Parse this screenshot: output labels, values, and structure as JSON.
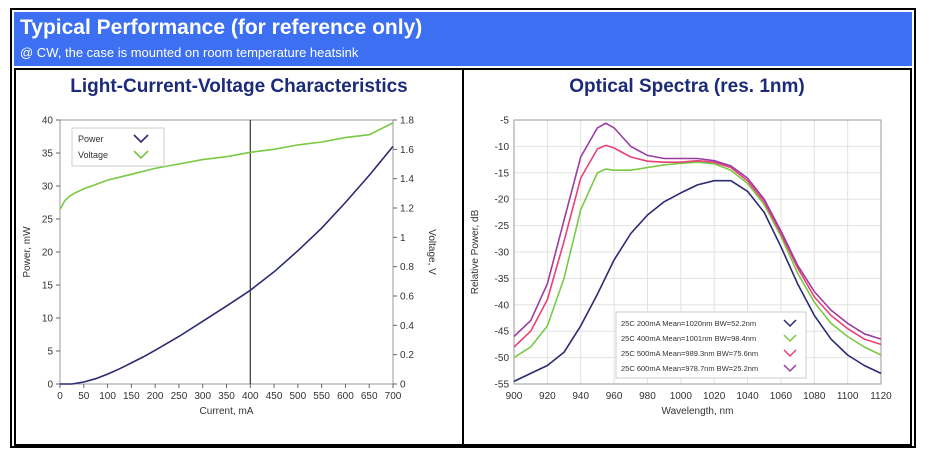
{
  "header": {
    "title": "Typical Performance (for reference only)",
    "subtitle": "@ CW, the case is mounted on room temperature heatsink"
  },
  "colors": {
    "header_bg": "#3d6ff2",
    "panel_title": "#1c2a7a",
    "power": "#2b2a72",
    "voltage": "#7ac943",
    "s200": "#2b2a72",
    "s400": "#7ac943",
    "s500": "#e8417a",
    "s600": "#9b3da5"
  },
  "chart_data": [
    {
      "type": "line",
      "title": "Light-Current-Voltage Characteristics",
      "xlabel": "Current, mA",
      "ylabel": "Power, mW",
      "y2label": "Voltage, V",
      "xlim": [
        0,
        700
      ],
      "ylim": [
        0,
        40
      ],
      "y2lim": [
        0,
        1.8
      ],
      "xticks": [
        "0",
        "50",
        "100",
        "150",
        "200",
        "250",
        "300",
        "350",
        "400",
        "450",
        "500",
        "550",
        "600",
        "650",
        "700"
      ],
      "yticks": [
        "0",
        "5",
        "10",
        "15",
        "20",
        "25",
        "30",
        "35",
        "40"
      ],
      "y2ticks": [
        "0",
        "0.2",
        "0.4",
        "0.6",
        "0.8",
        "1",
        "1.2",
        "1.4",
        "1.6",
        "1.8"
      ],
      "marker_x": 400,
      "legend_position": "top-left",
      "series": [
        {
          "name": "Power",
          "axis": "left",
          "color": "#2b2a72",
          "x": [
            0,
            25,
            50,
            75,
            100,
            125,
            150,
            175,
            200,
            250,
            300,
            350,
            400,
            450,
            500,
            550,
            600,
            650,
            700
          ],
          "y": [
            0,
            0,
            0.3,
            0.8,
            1.5,
            2.3,
            3.2,
            4.1,
            5.1,
            7.2,
            9.5,
            11.8,
            14.2,
            17.0,
            20.2,
            23.6,
            27.5,
            31.6,
            36.0
          ]
        },
        {
          "name": "Voltage",
          "axis": "right",
          "color": "#7ac943",
          "x": [
            0,
            10,
            20,
            30,
            50,
            75,
            100,
            150,
            200,
            250,
            300,
            350,
            400,
            450,
            500,
            550,
            600,
            650,
            700
          ],
          "y": [
            1.19,
            1.25,
            1.28,
            1.3,
            1.33,
            1.36,
            1.39,
            1.43,
            1.47,
            1.5,
            1.53,
            1.55,
            1.58,
            1.6,
            1.63,
            1.65,
            1.68,
            1.7,
            1.78
          ]
        }
      ]
    },
    {
      "type": "line",
      "title": "Optical Spectra (res. 1nm)",
      "xlabel": "Wavelength, nm",
      "ylabel": "Relative Power, dB",
      "xlim": [
        900,
        1120
      ],
      "ylim": [
        -55,
        -5
      ],
      "xticks": [
        "900",
        "920",
        "940",
        "960",
        "980",
        "1000",
        "1020",
        "1040",
        "1060",
        "1080",
        "1100",
        "1120"
      ],
      "yticks": [
        "-5",
        "-10",
        "-15",
        "-20",
        "-25",
        "-30",
        "-35",
        "-40",
        "-45",
        "-50",
        "-55"
      ],
      "legend_position": "bottom-center",
      "series": [
        {
          "name": "25C 200mA Mean=1020nm BW=52.2nm",
          "color": "#2b2a72",
          "x": [
            900,
            910,
            920,
            930,
            940,
            950,
            960,
            970,
            980,
            990,
            1000,
            1010,
            1020,
            1030,
            1040,
            1050,
            1060,
            1070,
            1080,
            1090,
            1100,
            1110,
            1120
          ],
          "y": [
            -54.5,
            -53,
            -51.5,
            -49,
            -44,
            -38,
            -31.5,
            -26.5,
            -23,
            -20.5,
            -18.8,
            -17.3,
            -16.5,
            -16.5,
            -18.5,
            -22.5,
            -29,
            -36,
            -42,
            -46.5,
            -49.5,
            -51.5,
            -53
          ]
        },
        {
          "name": "25C 400mA Mean=1001nm BW=98.4nm",
          "color": "#7ac943",
          "x": [
            900,
            910,
            920,
            930,
            940,
            950,
            955,
            960,
            970,
            980,
            990,
            1000,
            1010,
            1020,
            1030,
            1040,
            1050,
            1060,
            1070,
            1080,
            1090,
            1100,
            1110,
            1120
          ],
          "y": [
            -50,
            -48,
            -44,
            -35,
            -22,
            -15,
            -14.3,
            -14.5,
            -14.5,
            -14,
            -13.5,
            -13.2,
            -13,
            -13.3,
            -14.5,
            -17,
            -21,
            -27,
            -34,
            -39.5,
            -43.5,
            -46,
            -48,
            -49.5
          ]
        },
        {
          "name": "25C 500mA Mean=989.3nm BW=75.6nm",
          "color": "#e8417a",
          "x": [
            900,
            910,
            920,
            930,
            940,
            950,
            955,
            960,
            970,
            980,
            990,
            1000,
            1010,
            1020,
            1030,
            1040,
            1050,
            1060,
            1070,
            1080,
            1090,
            1100,
            1110,
            1120
          ],
          "y": [
            -48,
            -45,
            -39,
            -28,
            -16,
            -10.5,
            -9.8,
            -10.3,
            -12,
            -12.8,
            -13,
            -13,
            -12.7,
            -13,
            -14,
            -16.5,
            -20.5,
            -26.5,
            -33,
            -38.5,
            -42,
            -44.5,
            -46.5,
            -47.5
          ]
        },
        {
          "name": "25C 600mA Mean=978.7nm BW=25.2nm",
          "color": "#9b3da5",
          "x": [
            900,
            910,
            920,
            930,
            940,
            950,
            955,
            960,
            970,
            980,
            990,
            1000,
            1010,
            1020,
            1030,
            1040,
            1050,
            1060,
            1070,
            1080,
            1090,
            1100,
            1110,
            1120
          ],
          "y": [
            -46,
            -43,
            -36,
            -24,
            -12,
            -6.5,
            -5.6,
            -6.5,
            -10,
            -11.7,
            -12.3,
            -12.3,
            -12.3,
            -12.7,
            -13.7,
            -16,
            -20,
            -26,
            -32.5,
            -37.5,
            -41,
            -43.5,
            -45.5,
            -46.5
          ]
        }
      ]
    }
  ]
}
